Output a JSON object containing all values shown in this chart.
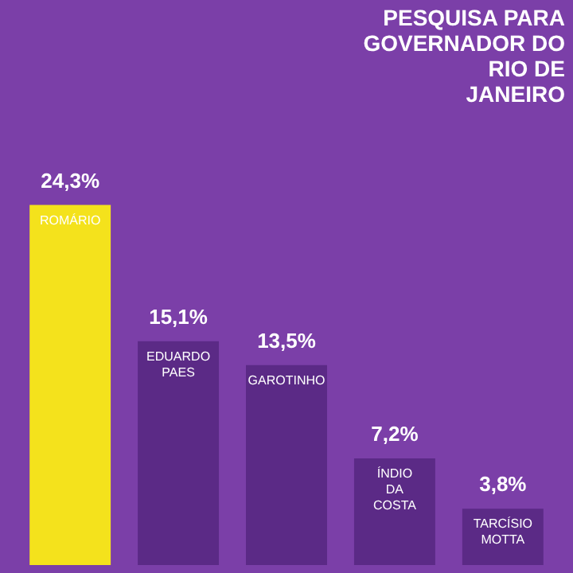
{
  "chart_data": {
    "type": "bar",
    "title": "PESQUISA PARA GOVERNADOR DO RIO DE JANEIRO",
    "categories": [
      "ROMÁRIO",
      "EDUARDO PAES",
      "GAROTINHO",
      "ÍNDIO DA COSTA",
      "TARCÍSIO MOTTA"
    ],
    "values": [
      24.3,
      15.1,
      13.5,
      7.2,
      3.8
    ],
    "colors": [
      "#f4e21c",
      "#5b2a86",
      "#5b2a86",
      "#5b2a86",
      "#5b2a86"
    ],
    "value_labels": [
      "24,3%",
      "15,1%",
      "13,5%",
      "7,2%",
      "3,8%"
    ]
  }
}
